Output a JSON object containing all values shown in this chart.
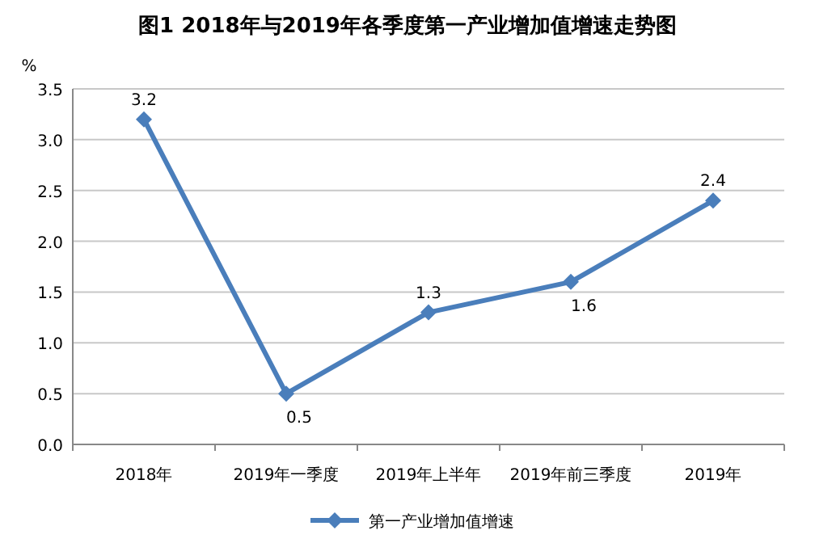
{
  "chart_data": {
    "type": "line",
    "title": "图1  2018年与2019年各季度第一产业增加值增速走势图",
    "ylabel": "%",
    "categories": [
      "2018年",
      "2019年一季度",
      "2019年上半年",
      "2019年前三季度",
      "2019年"
    ],
    "series": [
      {
        "name": "第一产业增加值增速",
        "color": "#4a7ebb",
        "values": [
          3.2,
          0.5,
          1.3,
          1.6,
          2.4
        ]
      }
    ],
    "ylim": [
      0,
      3.5
    ],
    "yticks": [
      {
        "value": 0,
        "label": "0.0"
      },
      {
        "value": 0.5,
        "label": "0.5"
      },
      {
        "value": 1,
        "label": "1.0"
      },
      {
        "value": 1.5,
        "label": "1.5"
      },
      {
        "value": 2,
        "label": "2.0"
      },
      {
        "value": 2.5,
        "label": "2.5"
      },
      {
        "value": 3,
        "label": "3.0"
      },
      {
        "value": 3.5,
        "label": "3.5"
      }
    ],
    "grid": "y",
    "legend": "bottom",
    "marker": "diamond",
    "data_labels": true
  }
}
